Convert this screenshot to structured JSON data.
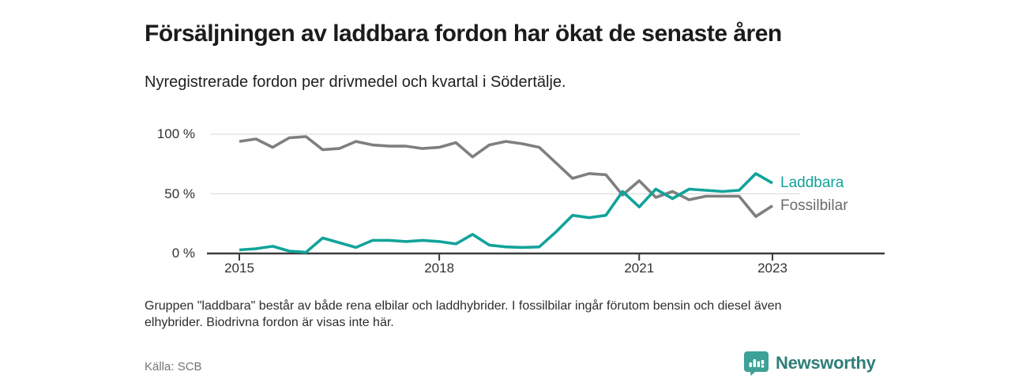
{
  "header": {
    "title": "Försäljningen av laddbara fordon har ökat de senaste åren",
    "subtitle": "Nyregistrerade fordon per drivmedel och kvartal i Södertälje."
  },
  "chart_data": {
    "type": "line",
    "title": "Försäljningen av laddbara fordon har ökat de senaste åren",
    "subtitle": "Nyregistrerade fordon per drivmedel och kvartal i Södertälje.",
    "x_unit": "kvartal",
    "categories": [
      "2015 kv1",
      "2015 kv2",
      "2015 kv3",
      "2015 kv4",
      "2016 kv1",
      "2016 kv2",
      "2016 kv3",
      "2016 kv4",
      "2017 kv1",
      "2017 kv2",
      "2017 kv3",
      "2017 kv4",
      "2018 kv1",
      "2018 kv2",
      "2018 kv3",
      "2018 kv4",
      "2019 kv1",
      "2019 kv2",
      "2019 kv3",
      "2019 kv4",
      "2020 kv1",
      "2020 kv2",
      "2020 kv3",
      "2020 kv4",
      "2021 kv1",
      "2021 kv2",
      "2021 kv3",
      "2021 kv4",
      "2022 kv1",
      "2022 kv2",
      "2022 kv3",
      "2022 kv4",
      "2023 kv1"
    ],
    "series": [
      {
        "name": "Laddbara",
        "color": "#12a39a",
        "label_color": "#12a39a",
        "values": [
          3,
          4,
          6,
          2,
          1,
          13,
          9,
          5,
          11,
          11,
          10,
          11,
          10,
          8,
          16,
          7,
          5.5,
          5,
          5.5,
          18,
          32,
          30,
          32,
          52,
          39,
          54,
          46,
          54,
          53,
          52,
          53,
          67,
          59
        ]
      },
      {
        "name": "Fossilbilar",
        "color": "#7f7f7f",
        "label_color": "#6b6b6b",
        "values": [
          94,
          96,
          89,
          97,
          98,
          87,
          88,
          94,
          91,
          90,
          90,
          88,
          89,
          93,
          81,
          91,
          94,
          92,
          89,
          76,
          63,
          67,
          66,
          49,
          61,
          47,
          52,
          45,
          48,
          48,
          48,
          31,
          40
        ]
      }
    ],
    "ylim": [
      0,
      100
    ],
    "yticks": [
      {
        "value": 100,
        "label": "100 %"
      },
      {
        "value": 50,
        "label": "50 %"
      },
      {
        "value": 0,
        "label": "0 %"
      }
    ],
    "xticks": [
      {
        "index": 0,
        "label": "2015"
      },
      {
        "index": 12,
        "label": "2018"
      },
      {
        "index": 24,
        "label": "2021"
      },
      {
        "index": 32,
        "label": "2023"
      }
    ],
    "grid": "horizontal-light",
    "legend_position": "right-of-line-ends"
  },
  "footnote": "Gruppen \"laddbara\" består av både rena elbilar och laddhybrider. I fossilbilar ingår förutom bensin och diesel även elhybrider. Biodrivna fordon är visas inte här.",
  "source": "Källa: SCB",
  "branding": {
    "name": "Newsworthy",
    "icon": "newsworthy-logo-icon",
    "icon_color": "#3da197",
    "text_color": "#2f7d7a"
  }
}
